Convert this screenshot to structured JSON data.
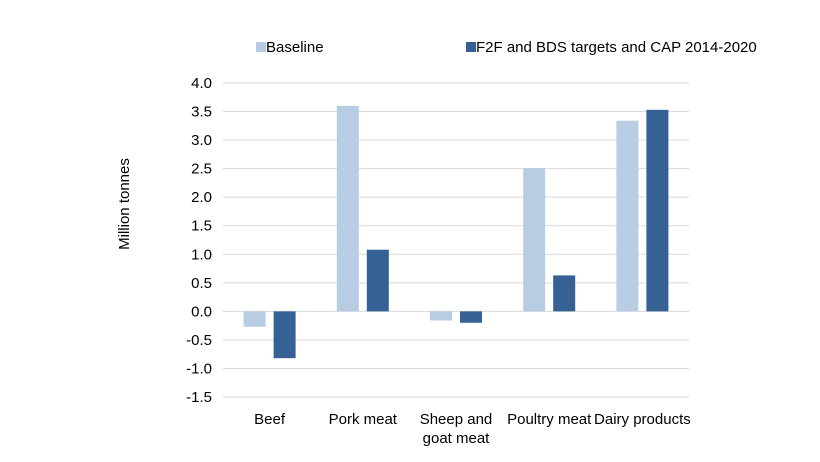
{
  "chart_data": {
    "type": "bar",
    "categories": [
      "Beef",
      "Pork meat",
      "Sheep and goat meat",
      "Poultry meat",
      "Dairy products"
    ],
    "category_lines": [
      [
        "Beef"
      ],
      [
        "Pork meat"
      ],
      [
        "Sheep and",
        "goat meat"
      ],
      [
        "Poultry meat"
      ],
      [
        "Dairy products"
      ]
    ],
    "series": [
      {
        "name": "Baseline",
        "color": "#b8cde4",
        "values": [
          -0.27,
          3.6,
          -0.16,
          2.51,
          3.34
        ]
      },
      {
        "name": "F2F and BDS targets and CAP 2014-2020",
        "color": "#356195",
        "values": [
          -0.82,
          1.08,
          -0.2,
          0.63,
          3.53
        ]
      }
    ],
    "title": "",
    "xlabel": "",
    "ylabel": "Million tonnes",
    "ylim": [
      -1.5,
      4.0
    ],
    "yticks": [
      4.0,
      3.5,
      3.0,
      2.5,
      2.0,
      1.5,
      1.0,
      0.5,
      0.0,
      -0.5,
      -1.0,
      -1.5
    ],
    "ytick_labels": [
      "4.0",
      "3.5",
      "3.0",
      "2.5",
      "2.0",
      "1.5",
      "1.0",
      "0.5",
      "0.0",
      "-0.5",
      "-1.0",
      "-1.5"
    ],
    "grid": true,
    "legend_position": "top"
  }
}
